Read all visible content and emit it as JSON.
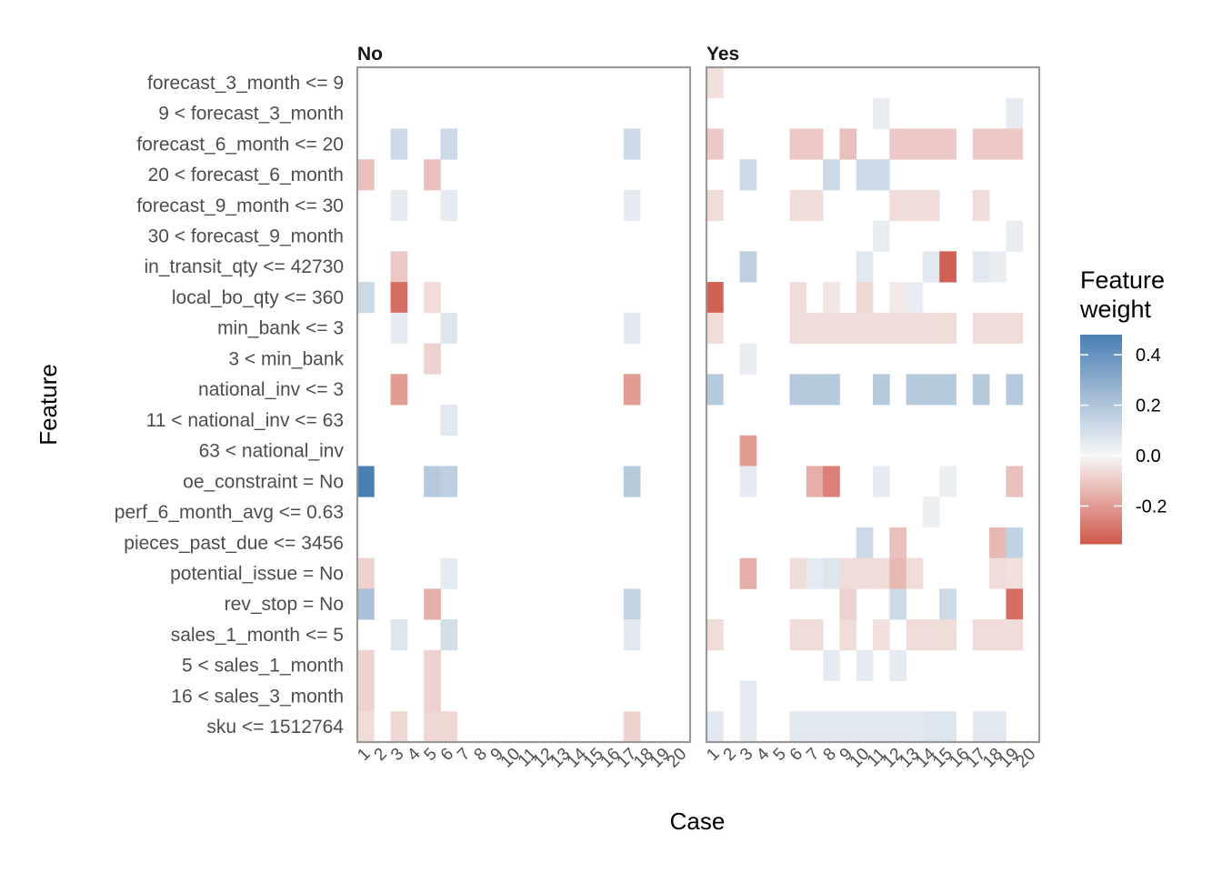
{
  "chart_data": {
    "type": "heatmap",
    "xlabel": "Case",
    "ylabel": "Feature",
    "legend": {
      "title_lines": [
        "Feature",
        "weight"
      ],
      "ticks": [
        0.4,
        0.2,
        0.0,
        -0.2
      ],
      "tick_labels": [
        "0.4",
        "0.2",
        "0.0",
        "-0.2"
      ],
      "min": -0.35,
      "max": 0.48,
      "colors": {
        "low": "#d0574a",
        "mid": "#f7f7f7",
        "high": "#4a7fb3"
      },
      "placement": "right"
    },
    "features": [
      "forecast_3_month <= 9",
      "9 < forecast_3_month",
      "forecast_6_month <= 20",
      "20 < forecast_6_month",
      "forecast_9_month <= 30",
      "30 < forecast_9_month",
      "in_transit_qty <= 42730",
      "local_bo_qty <= 360",
      "min_bank <= 3",
      "3 < min_bank",
      "national_inv <= 3",
      "11 < national_inv <= 63",
      "63 < national_inv",
      "oe_constraint = No",
      "perf_6_month_avg <= 0.63",
      "pieces_past_due <= 3456",
      "potential_issue = No",
      "rev_stop = No",
      "sales_1_month <= 5",
      "5 < sales_1_month",
      "16 < sales_3_month",
      "sku <= 1512764"
    ],
    "cases": [
      "1",
      "2",
      "3",
      "4",
      "5",
      "6",
      "7",
      "8",
      "9",
      "10",
      "11",
      "12",
      "13",
      "14",
      "15",
      "16",
      "17",
      "18",
      "19",
      "20"
    ],
    "panels": [
      {
        "label": "No",
        "cells": [
          {
            "case": 3,
            "feature": 2,
            "value": 0.12
          },
          {
            "case": 6,
            "feature": 2,
            "value": 0.12
          },
          {
            "case": 17,
            "feature": 2,
            "value": 0.12
          },
          {
            "case": 1,
            "feature": 3,
            "value": -0.12
          },
          {
            "case": 5,
            "feature": 3,
            "value": -0.12
          },
          {
            "case": 3,
            "feature": 4,
            "value": 0.05
          },
          {
            "case": 6,
            "feature": 4,
            "value": 0.05
          },
          {
            "case": 17,
            "feature": 4,
            "value": 0.05
          },
          {
            "case": 3,
            "feature": 6,
            "value": -0.1
          },
          {
            "case": 1,
            "feature": 7,
            "value": 0.12
          },
          {
            "case": 3,
            "feature": 7,
            "value": -0.3
          },
          {
            "case": 5,
            "feature": 7,
            "value": -0.06
          },
          {
            "case": 3,
            "feature": 8,
            "value": 0.05
          },
          {
            "case": 6,
            "feature": 8,
            "value": 0.07
          },
          {
            "case": 17,
            "feature": 8,
            "value": 0.06
          },
          {
            "case": 5,
            "feature": 9,
            "value": -0.08
          },
          {
            "case": 3,
            "feature": 10,
            "value": -0.2
          },
          {
            "case": 17,
            "feature": 10,
            "value": -0.2
          },
          {
            "case": 6,
            "feature": 11,
            "value": 0.06
          },
          {
            "case": 1,
            "feature": 13,
            "value": 0.48
          },
          {
            "case": 5,
            "feature": 13,
            "value": 0.18
          },
          {
            "case": 6,
            "feature": 13,
            "value": 0.16
          },
          {
            "case": 17,
            "feature": 13,
            "value": 0.18
          },
          {
            "case": 1,
            "feature": 16,
            "value": -0.08
          },
          {
            "case": 6,
            "feature": 16,
            "value": 0.05
          },
          {
            "case": 1,
            "feature": 17,
            "value": 0.22
          },
          {
            "case": 5,
            "feature": 17,
            "value": -0.16
          },
          {
            "case": 17,
            "feature": 17,
            "value": 0.14
          },
          {
            "case": 3,
            "feature": 18,
            "value": 0.07
          },
          {
            "case": 6,
            "feature": 18,
            "value": 0.1
          },
          {
            "case": 17,
            "feature": 18,
            "value": 0.06
          },
          {
            "case": 1,
            "feature": 19,
            "value": -0.08
          },
          {
            "case": 5,
            "feature": 19,
            "value": -0.08
          },
          {
            "case": 1,
            "feature": 20,
            "value": -0.08
          },
          {
            "case": 5,
            "feature": 20,
            "value": -0.08
          },
          {
            "case": 1,
            "feature": 21,
            "value": -0.06
          },
          {
            "case": 3,
            "feature": 21,
            "value": -0.07
          },
          {
            "case": 5,
            "feature": 21,
            "value": -0.07
          },
          {
            "case": 6,
            "feature": 21,
            "value": -0.07
          },
          {
            "case": 17,
            "feature": 21,
            "value": -0.08
          }
        ]
      },
      {
        "label": "Yes",
        "cells": [
          {
            "case": 1,
            "feature": 0,
            "value": -0.05
          },
          {
            "case": 11,
            "feature": 1,
            "value": 0.04
          },
          {
            "case": 19,
            "feature": 1,
            "value": 0.05
          },
          {
            "case": 1,
            "feature": 2,
            "value": -0.1
          },
          {
            "case": 6,
            "feature": 2,
            "value": -0.1
          },
          {
            "case": 7,
            "feature": 2,
            "value": -0.1
          },
          {
            "case": 9,
            "feature": 2,
            "value": -0.12
          },
          {
            "case": 12,
            "feature": 2,
            "value": -0.1
          },
          {
            "case": 13,
            "feature": 2,
            "value": -0.1
          },
          {
            "case": 14,
            "feature": 2,
            "value": -0.1
          },
          {
            "case": 15,
            "feature": 2,
            "value": -0.1
          },
          {
            "case": 17,
            "feature": 2,
            "value": -0.1
          },
          {
            "case": 18,
            "feature": 2,
            "value": -0.1
          },
          {
            "case": 19,
            "feature": 2,
            "value": -0.1
          },
          {
            "case": 3,
            "feature": 3,
            "value": 0.12
          },
          {
            "case": 8,
            "feature": 3,
            "value": 0.12
          },
          {
            "case": 10,
            "feature": 3,
            "value": 0.12
          },
          {
            "case": 11,
            "feature": 3,
            "value": 0.12
          },
          {
            "case": 1,
            "feature": 4,
            "value": -0.06
          },
          {
            "case": 6,
            "feature": 4,
            "value": -0.06
          },
          {
            "case": 7,
            "feature": 4,
            "value": -0.06
          },
          {
            "case": 12,
            "feature": 4,
            "value": -0.06
          },
          {
            "case": 13,
            "feature": 4,
            "value": -0.06
          },
          {
            "case": 14,
            "feature": 4,
            "value": -0.06
          },
          {
            "case": 17,
            "feature": 4,
            "value": -0.06
          },
          {
            "case": 11,
            "feature": 5,
            "value": 0.04
          },
          {
            "case": 19,
            "feature": 5,
            "value": 0.04
          },
          {
            "case": 3,
            "feature": 6,
            "value": 0.16
          },
          {
            "case": 10,
            "feature": 6,
            "value": 0.06
          },
          {
            "case": 14,
            "feature": 6,
            "value": 0.06
          },
          {
            "case": 15,
            "feature": 6,
            "value": -0.33
          },
          {
            "case": 17,
            "feature": 6,
            "value": 0.06
          },
          {
            "case": 18,
            "feature": 6,
            "value": 0.04
          },
          {
            "case": 1,
            "feature": 7,
            "value": -0.33
          },
          {
            "case": 6,
            "feature": 7,
            "value": -0.06
          },
          {
            "case": 8,
            "feature": 7,
            "value": -0.04
          },
          {
            "case": 10,
            "feature": 7,
            "value": -0.07
          },
          {
            "case": 12,
            "feature": 7,
            "value": -0.03
          },
          {
            "case": 13,
            "feature": 7,
            "value": 0.04
          },
          {
            "case": 1,
            "feature": 8,
            "value": -0.06
          },
          {
            "case": 6,
            "feature": 8,
            "value": -0.06
          },
          {
            "case": 7,
            "feature": 8,
            "value": -0.06
          },
          {
            "case": 8,
            "feature": 8,
            "value": -0.06
          },
          {
            "case": 9,
            "feature": 8,
            "value": -0.06
          },
          {
            "case": 10,
            "feature": 8,
            "value": -0.06
          },
          {
            "case": 11,
            "feature": 8,
            "value": -0.06
          },
          {
            "case": 12,
            "feature": 8,
            "value": -0.06
          },
          {
            "case": 13,
            "feature": 8,
            "value": -0.06
          },
          {
            "case": 14,
            "feature": 8,
            "value": -0.06
          },
          {
            "case": 15,
            "feature": 8,
            "value": -0.06
          },
          {
            "case": 17,
            "feature": 8,
            "value": -0.06
          },
          {
            "case": 18,
            "feature": 8,
            "value": -0.06
          },
          {
            "case": 19,
            "feature": 8,
            "value": -0.06
          },
          {
            "case": 3,
            "feature": 9,
            "value": 0.04
          },
          {
            "case": 1,
            "feature": 10,
            "value": 0.18
          },
          {
            "case": 6,
            "feature": 10,
            "value": 0.18
          },
          {
            "case": 7,
            "feature": 10,
            "value": 0.18
          },
          {
            "case": 8,
            "feature": 10,
            "value": 0.18
          },
          {
            "case": 11,
            "feature": 10,
            "value": 0.18
          },
          {
            "case": 13,
            "feature": 10,
            "value": 0.18
          },
          {
            "case": 14,
            "feature": 10,
            "value": 0.18
          },
          {
            "case": 15,
            "feature": 10,
            "value": 0.18
          },
          {
            "case": 17,
            "feature": 10,
            "value": 0.18
          },
          {
            "case": 19,
            "feature": 10,
            "value": 0.18
          },
          {
            "case": 3,
            "feature": 12,
            "value": -0.2
          },
          {
            "case": 3,
            "feature": 13,
            "value": 0.05
          },
          {
            "case": 7,
            "feature": 13,
            "value": -0.16
          },
          {
            "case": 8,
            "feature": 13,
            "value": -0.26
          },
          {
            "case": 11,
            "feature": 13,
            "value": 0.05
          },
          {
            "case": 15,
            "feature": 13,
            "value": 0.03
          },
          {
            "case": 19,
            "feature": 13,
            "value": -0.12
          },
          {
            "case": 14,
            "feature": 14,
            "value": 0.03
          },
          {
            "case": 10,
            "feature": 15,
            "value": 0.12
          },
          {
            "case": 12,
            "feature": 15,
            "value": -0.12
          },
          {
            "case": 18,
            "feature": 15,
            "value": -0.14
          },
          {
            "case": 19,
            "feature": 15,
            "value": 0.15
          },
          {
            "case": 3,
            "feature": 16,
            "value": -0.16
          },
          {
            "case": 6,
            "feature": 16,
            "value": -0.06
          },
          {
            "case": 7,
            "feature": 16,
            "value": 0.05
          },
          {
            "case": 8,
            "feature": 16,
            "value": 0.07
          },
          {
            "case": 9,
            "feature": 16,
            "value": -0.06
          },
          {
            "case": 10,
            "feature": 16,
            "value": -0.06
          },
          {
            "case": 11,
            "feature": 16,
            "value": -0.06
          },
          {
            "case": 12,
            "feature": 16,
            "value": -0.14
          },
          {
            "case": 13,
            "feature": 16,
            "value": -0.06
          },
          {
            "case": 18,
            "feature": 16,
            "value": -0.06
          },
          {
            "case": 19,
            "feature": 16,
            "value": -0.05
          },
          {
            "case": 9,
            "feature": 17,
            "value": -0.08
          },
          {
            "case": 12,
            "feature": 17,
            "value": 0.12
          },
          {
            "case": 15,
            "feature": 17,
            "value": 0.12
          },
          {
            "case": 19,
            "feature": 17,
            "value": -0.3
          },
          {
            "case": 1,
            "feature": 18,
            "value": -0.06
          },
          {
            "case": 6,
            "feature": 18,
            "value": -0.06
          },
          {
            "case": 7,
            "feature": 18,
            "value": -0.06
          },
          {
            "case": 9,
            "feature": 18,
            "value": -0.06
          },
          {
            "case": 11,
            "feature": 18,
            "value": -0.05
          },
          {
            "case": 13,
            "feature": 18,
            "value": -0.06
          },
          {
            "case": 14,
            "feature": 18,
            "value": -0.06
          },
          {
            "case": 15,
            "feature": 18,
            "value": -0.06
          },
          {
            "case": 17,
            "feature": 18,
            "value": -0.06
          },
          {
            "case": 18,
            "feature": 18,
            "value": -0.06
          },
          {
            "case": 19,
            "feature": 18,
            "value": -0.06
          },
          {
            "case": 8,
            "feature": 19,
            "value": 0.05
          },
          {
            "case": 10,
            "feature": 19,
            "value": 0.05
          },
          {
            "case": 12,
            "feature": 19,
            "value": 0.05
          },
          {
            "case": 3,
            "feature": 20,
            "value": 0.05
          },
          {
            "case": 1,
            "feature": 21,
            "value": 0.06
          },
          {
            "case": 3,
            "feature": 21,
            "value": 0.05
          },
          {
            "case": 6,
            "feature": 21,
            "value": 0.06
          },
          {
            "case": 7,
            "feature": 21,
            "value": 0.06
          },
          {
            "case": 8,
            "feature": 21,
            "value": 0.06
          },
          {
            "case": 9,
            "feature": 21,
            "value": 0.06
          },
          {
            "case": 10,
            "feature": 21,
            "value": 0.06
          },
          {
            "case": 11,
            "feature": 21,
            "value": 0.06
          },
          {
            "case": 12,
            "feature": 21,
            "value": 0.06
          },
          {
            "case": 13,
            "feature": 21,
            "value": 0.06
          },
          {
            "case": 14,
            "feature": 21,
            "value": 0.07
          },
          {
            "case": 15,
            "feature": 21,
            "value": 0.07
          },
          {
            "case": 17,
            "feature": 21,
            "value": 0.06
          },
          {
            "case": 18,
            "feature": 21,
            "value": 0.06
          }
        ]
      }
    ]
  }
}
